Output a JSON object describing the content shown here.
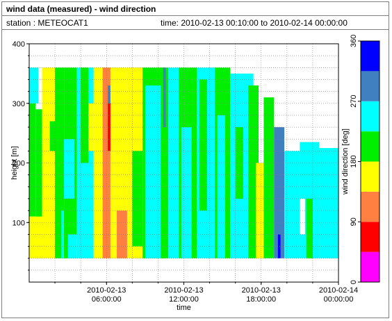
{
  "header": {
    "title": "wind data (measured) - wind direction",
    "station": "station : METEOCAT1",
    "time_range": "time: 2010-02-13 00:10:00 to 2010-02-14 00:00:00"
  },
  "chart_data": {
    "type": "heatmap",
    "xlabel": "time",
    "ylabel": "height [m]",
    "ylim": [
      0,
      400
    ],
    "yticks": [
      100,
      200,
      300,
      400
    ],
    "xticks": [
      {
        "line1": "2010-02-13",
        "line2": "06:00:00"
      },
      {
        "line1": "2010-02-13",
        "line2": "12:00:00"
      },
      {
        "line1": "2010-02-13",
        "line2": "18:00:00"
      },
      {
        "line1": "2010-02-14",
        "line2": "00:00:00"
      }
    ],
    "x_range_hours": [
      0,
      24
    ],
    "colorbar": {
      "label": "wind direction [deg]",
      "range": [
        0,
        360
      ],
      "ticks": [
        0,
        90,
        180,
        270,
        360
      ],
      "bands": [
        {
          "from": 0,
          "to": 45,
          "color": "#ff00ff"
        },
        {
          "from": 45,
          "to": 90,
          "color": "#ff0000"
        },
        {
          "from": 90,
          "to": 135,
          "color": "#ff8040"
        },
        {
          "from": 135,
          "to": 180,
          "color": "#ffff00"
        },
        {
          "from": 180,
          "to": 225,
          "color": "#00ee00"
        },
        {
          "from": 225,
          "to": 270,
          "color": "#00ffff"
        },
        {
          "from": 270,
          "to": 315,
          "color": "#4080c0"
        },
        {
          "from": 315,
          "to": 360,
          "color": "#0000ff"
        }
      ]
    },
    "regions": [
      {
        "t0": 0.0,
        "t1": 0.5,
        "h0": 110,
        "h1": 300,
        "color": "#00ee00"
      },
      {
        "t0": 0.5,
        "t1": 1.0,
        "h0": 60,
        "h1": 290,
        "color": "#00ee00"
      },
      {
        "t0": 0.0,
        "t1": 1.0,
        "h0": 40,
        "h1": 110,
        "color": "#ffff00"
      },
      {
        "t0": 0.0,
        "t1": 0.7,
        "h0": 300,
        "h1": 360,
        "color": "#00ffff"
      },
      {
        "t0": 1.0,
        "t1": 2.0,
        "h0": 40,
        "h1": 300,
        "color": "#ffff00"
      },
      {
        "t0": 1.0,
        "t1": 2.0,
        "h0": 300,
        "h1": 360,
        "color": "#ffff00"
      },
      {
        "t0": 1.6,
        "t1": 2.2,
        "h0": 220,
        "h1": 270,
        "color": "#00ee00"
      },
      {
        "t0": 2.0,
        "t1": 2.7,
        "h0": 40,
        "h1": 360,
        "color": "#00ee00"
      },
      {
        "t0": 2.5,
        "t1": 3.0,
        "h0": 40,
        "h1": 120,
        "color": "#00ffff"
      },
      {
        "t0": 2.7,
        "t1": 3.7,
        "h0": 40,
        "h1": 360,
        "color": "#00ee00"
      },
      {
        "t0": 2.7,
        "t1": 3.5,
        "h0": 140,
        "h1": 240,
        "color": "#00ffff"
      },
      {
        "t0": 3.0,
        "t1": 3.7,
        "h0": 40,
        "h1": 80,
        "color": "#00ffff"
      },
      {
        "t0": 3.7,
        "t1": 5.0,
        "h0": 40,
        "h1": 360,
        "color": "#00ffff"
      },
      {
        "t0": 4.0,
        "t1": 4.6,
        "h0": 200,
        "h1": 360,
        "color": "#00ee00"
      },
      {
        "t0": 4.6,
        "t1": 5.0,
        "h0": 220,
        "h1": 300,
        "color": "#ffff00"
      },
      {
        "t0": 5.0,
        "t1": 5.6,
        "h0": 40,
        "h1": 360,
        "color": "#ffff00"
      },
      {
        "t0": 5.6,
        "t1": 6.6,
        "h0": 40,
        "h1": 360,
        "color": "#ffff00"
      },
      {
        "t0": 5.7,
        "t1": 6.3,
        "h0": 40,
        "h1": 360,
        "color": "#ff8040"
      },
      {
        "t0": 6.1,
        "t1": 6.3,
        "h0": 220,
        "h1": 300,
        "color": "#ff0000"
      },
      {
        "t0": 6.1,
        "t1": 6.3,
        "h0": 300,
        "h1": 330,
        "color": "#4080c0"
      },
      {
        "t0": 6.6,
        "t1": 7.6,
        "h0": 40,
        "h1": 360,
        "color": "#ffff00"
      },
      {
        "t0": 6.8,
        "t1": 7.6,
        "h0": 40,
        "h1": 120,
        "color": "#ff8040"
      },
      {
        "t0": 7.6,
        "t1": 8.8,
        "h0": 40,
        "h1": 360,
        "color": "#ffff00"
      },
      {
        "t0": 8.0,
        "t1": 8.8,
        "h0": 60,
        "h1": 220,
        "color": "#00ee00"
      },
      {
        "t0": 8.8,
        "t1": 10.5,
        "h0": 40,
        "h1": 360,
        "color": "#00ee00"
      },
      {
        "t0": 9.0,
        "t1": 10.2,
        "h0": 40,
        "h1": 330,
        "color": "#00ffff"
      },
      {
        "t0": 10.2,
        "t1": 10.8,
        "h0": 40,
        "h1": 360,
        "color": "#00ee00"
      },
      {
        "t0": 10.4,
        "t1": 10.6,
        "h0": 260,
        "h1": 360,
        "color": "#4080c0"
      },
      {
        "t0": 10.8,
        "t1": 11.6,
        "h0": 40,
        "h1": 360,
        "color": "#00ffff"
      },
      {
        "t0": 11.6,
        "t1": 13.0,
        "h0": 40,
        "h1": 360,
        "color": "#00ee00"
      },
      {
        "t0": 11.8,
        "t1": 12.6,
        "h0": 40,
        "h1": 260,
        "color": "#00ffff"
      },
      {
        "t0": 13.0,
        "t1": 14.4,
        "h0": 40,
        "h1": 360,
        "color": "#00ffff"
      },
      {
        "t0": 13.2,
        "t1": 13.8,
        "h0": 120,
        "h1": 340,
        "color": "#00ee00"
      },
      {
        "t0": 14.4,
        "t1": 15.6,
        "h0": 40,
        "h1": 360,
        "color": "#00ee00"
      },
      {
        "t0": 14.6,
        "t1": 15.2,
        "h0": 40,
        "h1": 280,
        "color": "#00ffff"
      },
      {
        "t0": 15.6,
        "t1": 17.4,
        "h0": 40,
        "h1": 350,
        "color": "#00ffff"
      },
      {
        "t0": 16.0,
        "t1": 16.6,
        "h0": 140,
        "h1": 260,
        "color": "#00ee00"
      },
      {
        "t0": 17.0,
        "t1": 17.8,
        "h0": 40,
        "h1": 330,
        "color": "#00ee00"
      },
      {
        "t0": 17.6,
        "t1": 18.2,
        "h0": 40,
        "h1": 200,
        "color": "#ffff00"
      },
      {
        "t0": 18.2,
        "t1": 19.0,
        "h0": 40,
        "h1": 310,
        "color": "#00ee00"
      },
      {
        "t0": 19.0,
        "t1": 19.8,
        "h0": 40,
        "h1": 260,
        "color": "#4080c0"
      },
      {
        "t0": 19.3,
        "t1": 19.5,
        "h0": 40,
        "h1": 80,
        "color": "#0000ff"
      },
      {
        "t0": 19.8,
        "t1": 21.0,
        "h0": 40,
        "h1": 220,
        "color": "#00ffff"
      },
      {
        "t0": 21.0,
        "t1": 22.5,
        "h0": 40,
        "h1": 235,
        "color": "#00ffff"
      },
      {
        "t0": 22.5,
        "t1": 24.0,
        "h0": 40,
        "h1": 225,
        "color": "#00ffff"
      },
      {
        "t0": 21.5,
        "t1": 22.0,
        "h0": 40,
        "h1": 140,
        "color": "#00ee00"
      },
      {
        "t0": 21.0,
        "t1": 21.4,
        "h0": 80,
        "h1": 140,
        "color": "#ffffff"
      }
    ]
  }
}
